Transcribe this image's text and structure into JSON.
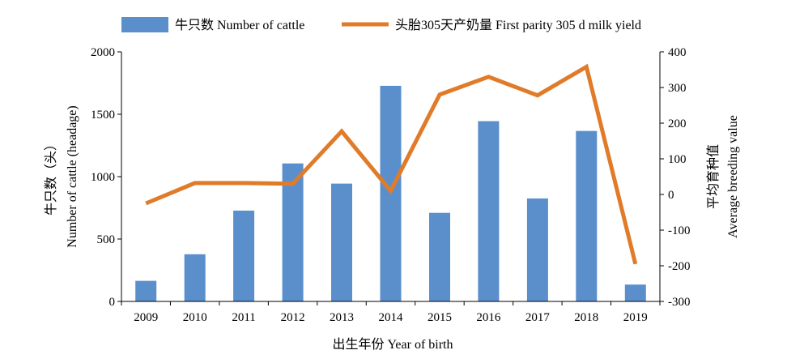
{
  "chart_data": {
    "type": "bar",
    "categories": [
      "2009",
      "2010",
      "2011",
      "2012",
      "2013",
      "2014",
      "2015",
      "2016",
      "2017",
      "2018",
      "2019"
    ],
    "series": [
      {
        "name": "牛只数 Number of cattle",
        "type": "bar",
        "axis": "left",
        "color": "#5b8fcc",
        "values": [
          165,
          378,
          728,
          1106,
          944,
          1728,
          710,
          1445,
          825,
          1366,
          135
        ]
      },
      {
        "name": "头胎305天产奶量 First parity 305 d milk yield",
        "type": "line",
        "axis": "right",
        "color": "#e07b2a",
        "values": [
          -25,
          32,
          32,
          30,
          177,
          10,
          280,
          330,
          278,
          358,
          -195
        ]
      }
    ],
    "xlabel": "出生年份 Year of birth",
    "ylabel_left": [
      "牛只数（头）",
      "Number of cattle (headage)"
    ],
    "ylabel_right": [
      "平均育种值",
      "Average breeding value"
    ],
    "ylim_left": [
      0,
      2000
    ],
    "yticks_left": [
      "0",
      "500",
      "1000",
      "1500",
      "2000"
    ],
    "ylim_right": [
      -300,
      400
    ],
    "yticks_right": [
      "-300",
      "-200",
      "-100",
      "0",
      "100",
      "200",
      "300",
      "400"
    ],
    "grid": false,
    "legend": "top"
  }
}
